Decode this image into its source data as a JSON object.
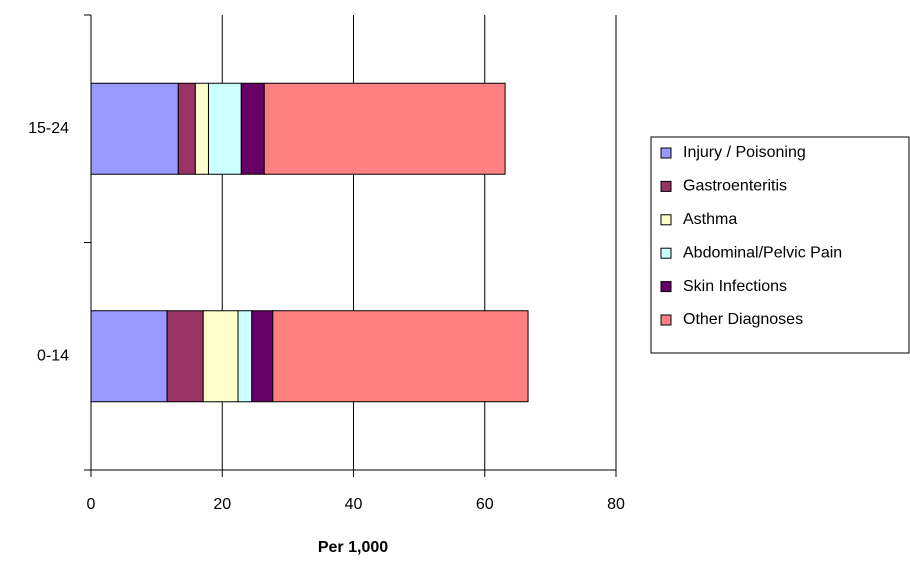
{
  "chart_data": {
    "type": "stacked_bar_horizontal",
    "x_label": "Per 1,000",
    "categories": [
      "0-14",
      "15-24"
    ],
    "series": [
      {
        "name": "Injury / Poisoning",
        "color": "#9999ff",
        "values": [
          11.6,
          13.3
        ]
      },
      {
        "name": "Gastroenteritis",
        "color": "#993366",
        "values": [
          5.5,
          2.6
        ]
      },
      {
        "name": "Asthma",
        "color": "#ffffcc",
        "values": [
          5.3,
          2.0
        ]
      },
      {
        "name": "Abdominal/Pelvic Pain",
        "color": "#ccffff",
        "values": [
          2.1,
          5.0
        ]
      },
      {
        "name": "Skin Infections",
        "color": "#660066",
        "values": [
          3.2,
          3.5
        ]
      },
      {
        "name": "Other Diagnoses",
        "color": "#ff8080",
        "values": [
          38.9,
          36.7
        ]
      }
    ],
    "xlim": [
      0,
      80
    ],
    "xticks": [
      0,
      20,
      40,
      60,
      80
    ],
    "grid": true,
    "legend": "right"
  }
}
